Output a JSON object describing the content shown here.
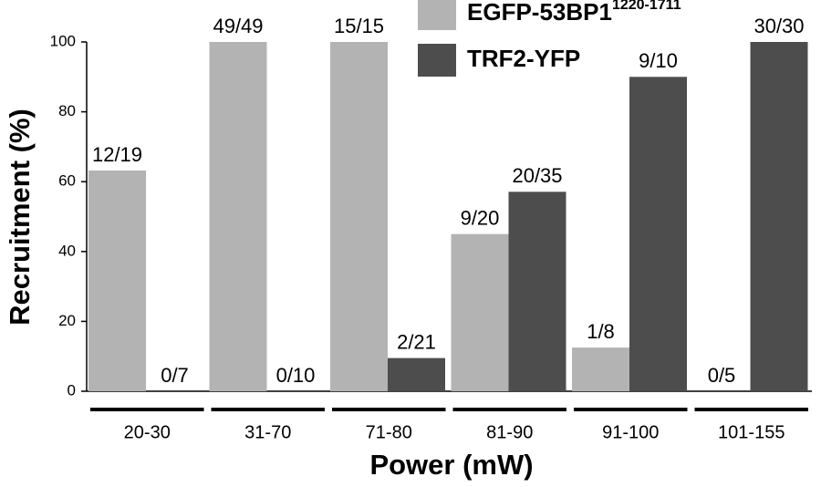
{
  "chart_data": {
    "type": "bar",
    "xlabel": "Power (mW)",
    "ylabel": "Recruitment (%)",
    "categories": [
      "20-30",
      "31-70",
      "71-80",
      "81-90",
      "91-100",
      "101-155"
    ],
    "series": [
      {
        "name": "EGFP-53BP1",
        "name_superscript": "1220-1711",
        "color": "#b3b3b3",
        "values": [
          63.2,
          100,
          100,
          45,
          12.5,
          0
        ],
        "value_labels": [
          "12/19",
          "49/49",
          "15/15",
          "9/20",
          "1/8",
          "0/5"
        ]
      },
      {
        "name": "TRF2-YFP",
        "color": "#4d4d4d",
        "values": [
          0,
          0,
          9.5,
          57.1,
          90,
          100
        ],
        "value_labels": [
          "0/7",
          "0/10",
          "2/21",
          "20/35",
          "9/10",
          "30/30"
        ]
      }
    ],
    "ylim": [
      0,
      100
    ],
    "yticks": [
      0,
      20,
      40,
      60,
      80,
      100
    ],
    "grid": false,
    "legend": "top"
  }
}
